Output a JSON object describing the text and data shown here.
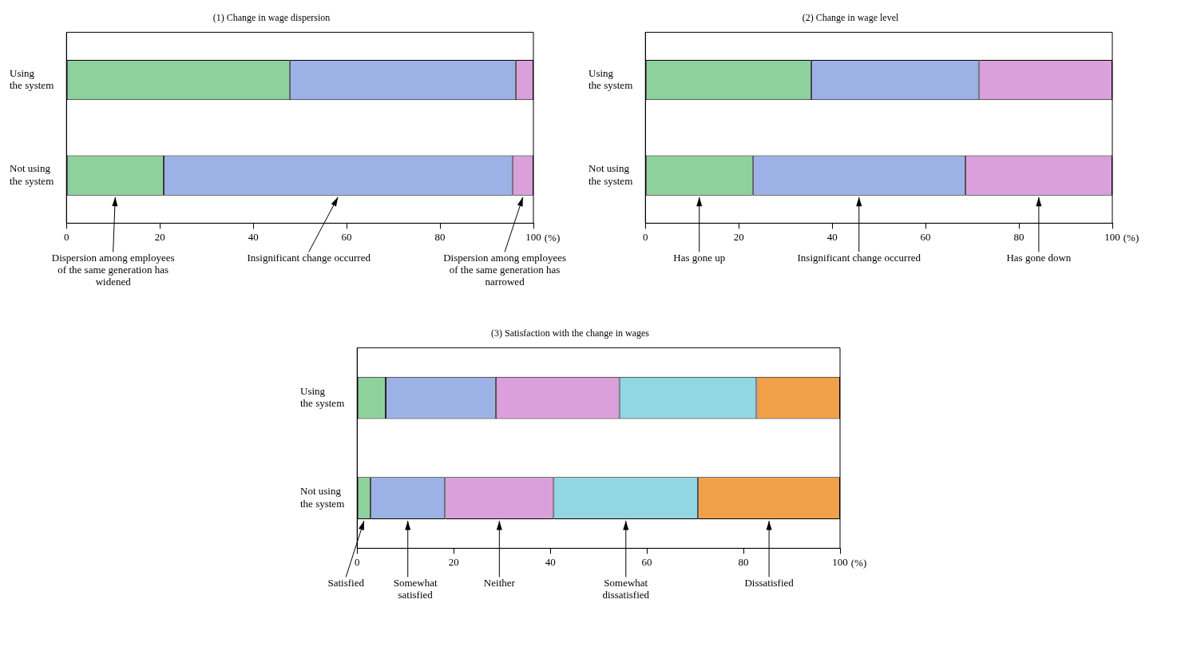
{
  "chart_data": [
    {
      "type": "bar",
      "orientation": "horizontal",
      "stacked": true,
      "title": "(1) Change in wage dispersion",
      "xlabel": "(%)",
      "categories": [
        "Using the system",
        "Not using the system"
      ],
      "xlim": [
        0,
        100
      ],
      "xticks": [
        0,
        20,
        40,
        60,
        80,
        100
      ],
      "grid": false,
      "series": [
        {
          "name": "Dispersion among employees of the same generation has widened",
          "color": "#8fd19c",
          "values": [
            47.8,
            20.8
          ]
        },
        {
          "name": "Insignificant change occurred",
          "color": "#9cb2e6",
          "values": [
            48.4,
            74.7
          ]
        },
        {
          "name": "Dispersion among employees of the same generation has narrowed",
          "color": "#dba0db",
          "values": [
            3.8,
            4.5
          ]
        }
      ]
    },
    {
      "type": "bar",
      "orientation": "horizontal",
      "stacked": true,
      "title": "(2) Change in wage level",
      "xlabel": "(%)",
      "categories": [
        "Using the system",
        "Not using the system"
      ],
      "xlim": [
        0,
        100
      ],
      "xticks": [
        0,
        20,
        40,
        60,
        80,
        100
      ],
      "grid": false,
      "series": [
        {
          "name": "Has gone up",
          "color": "#8fd19c",
          "values": [
            35.5,
            23.0
          ]
        },
        {
          "name": "Insignificant change occurred",
          "color": "#9cb2e6",
          "values": [
            36.0,
            45.5
          ]
        },
        {
          "name": "Has gone down",
          "color": "#dba0db",
          "values": [
            28.5,
            31.5
          ]
        }
      ]
    },
    {
      "type": "bar",
      "orientation": "horizontal",
      "stacked": true,
      "title": "(3) Satisfaction with the change in wages",
      "xlabel": "(%)",
      "categories": [
        "Using the system",
        "Not using the system"
      ],
      "xlim": [
        0,
        100
      ],
      "xticks": [
        0,
        20,
        40,
        60,
        80,
        100
      ],
      "grid": false,
      "series": [
        {
          "name": "Satisfied",
          "color": "#8fd19c",
          "values": [
            5.9,
            2.8
          ]
        },
        {
          "name": "Somewhat satisfied",
          "color": "#9cb2e6",
          "values": [
            22.8,
            15.4
          ]
        },
        {
          "name": "Neither",
          "color": "#dba0db",
          "values": [
            25.6,
            22.5
          ]
        },
        {
          "name": "Somewhat dissatisfied",
          "color": "#93d6e3",
          "values": [
            28.4,
            29.9
          ]
        },
        {
          "name": "Dissatisfied",
          "color": "#f0a048",
          "values": [
            17.3,
            29.4
          ]
        }
      ]
    }
  ]
}
